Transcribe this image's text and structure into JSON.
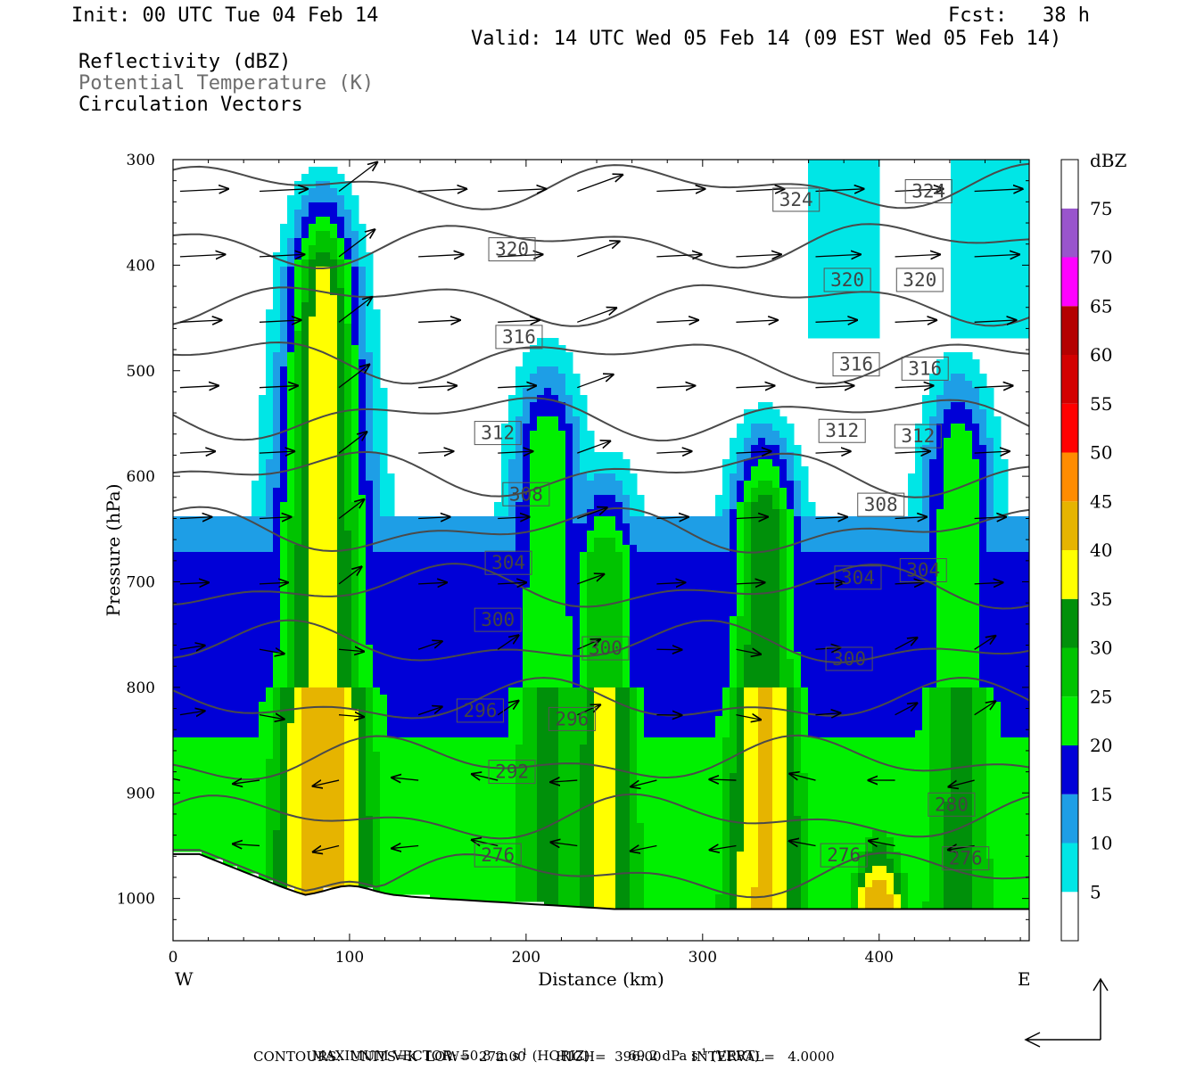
{
  "header": {
    "init": "Init: 00 UTC Tue 04 Feb 14",
    "fcst": "Fcst:   38 h",
    "valid": "Valid: 14 UTC Wed 05 Feb 14 (09 EST Wed 05 Feb 14)",
    "field1": "Reflectivity (dBZ)",
    "field2": "Potential Temperature (K)",
    "field3": "Circulation Vectors"
  },
  "footer": {
    "max_vector_label": "MAXIMUM VECTOR:",
    "max_vector_horiz": "50.8 m s",
    "horiz_tag": "(HORIZ)",
    "max_vector_vert": "69.2 dPa s",
    "vert_tag": "(VERT)",
    "exp": "-1",
    "contours": "CONTOURS:  UNITS=K  LOW=  272.00       HIGH=  396.00       INTERVAL=   4.0000"
  },
  "chart_data": {
    "type": "heatmap",
    "title": "",
    "xlabel": "Distance (km)",
    "ylabel": "Pressure (hPa)",
    "xlim": [
      0,
      485
    ],
    "ylim": [
      1040,
      300
    ],
    "x_ticks": [
      0,
      100,
      200,
      300,
      400
    ],
    "y_ticks": [
      300,
      400,
      500,
      600,
      700,
      800,
      900,
      1000
    ],
    "x_end_labels": {
      "left": "W",
      "right": "E"
    },
    "colorbar": {
      "unit": "dBZ",
      "levels": [
        5,
        10,
        15,
        20,
        25,
        30,
        35,
        40,
        45,
        50,
        55,
        60,
        65,
        70,
        75
      ],
      "colors": [
        "#ffffff",
        "#00e6e6",
        "#1e9ee6",
        "#0000d7",
        "#00f000",
        "#00c300",
        "#00900a",
        "#ffff00",
        "#e6b400",
        "#ff8c00",
        "#ff0000",
        "#d20000",
        "#b40000",
        "#ff00ff",
        "#9955cc"
      ]
    },
    "reflectivity_columns": [
      {
        "x": 85,
        "top_p": 315,
        "peak_dbz": 38
      },
      {
        "x": 212,
        "top_p": 470,
        "peak_dbz": 25
      },
      {
        "x": 245,
        "top_p": 580,
        "peak_dbz": 30
      },
      {
        "x": 335,
        "top_p": 540,
        "peak_dbz": 35
      },
      {
        "x": 400,
        "top_p": 900,
        "peak_dbz": 38
      },
      {
        "x": 445,
        "top_p": 480,
        "peak_dbz": 25
      }
    ],
    "theta_contour_labels": [
      {
        "value": "324",
        "x": 353,
        "p": 338
      },
      {
        "value": "324",
        "x": 428,
        "p": 330
      },
      {
        "value": "320",
        "x": 192,
        "p": 385
      },
      {
        "value": "320",
        "x": 382,
        "p": 414
      },
      {
        "value": "320",
        "x": 423,
        "p": 414
      },
      {
        "value": "316",
        "x": 196,
        "p": 468
      },
      {
        "value": "316",
        "x": 387,
        "p": 494
      },
      {
        "value": "316",
        "x": 426,
        "p": 498
      },
      {
        "value": "312",
        "x": 184,
        "p": 559
      },
      {
        "value": "312",
        "x": 379,
        "p": 557
      },
      {
        "value": "312",
        "x": 422,
        "p": 562
      },
      {
        "value": "308",
        "x": 200,
        "p": 617
      },
      {
        "value": "308",
        "x": 401,
        "p": 627
      },
      {
        "value": "304",
        "x": 190,
        "p": 682
      },
      {
        "value": "304",
        "x": 388,
        "p": 696
      },
      {
        "value": "304",
        "x": 425,
        "p": 689
      },
      {
        "value": "300",
        "x": 184,
        "p": 736
      },
      {
        "value": "300",
        "x": 245,
        "p": 763
      },
      {
        "value": "300",
        "x": 383,
        "p": 773
      },
      {
        "value": "296",
        "x": 174,
        "p": 822
      },
      {
        "value": "296",
        "x": 226,
        "p": 830
      },
      {
        "value": "292",
        "x": 192,
        "p": 880
      },
      {
        "value": "280",
        "x": 441,
        "p": 911
      },
      {
        "value": "276",
        "x": 184,
        "p": 959
      },
      {
        "value": "276",
        "x": 380,
        "p": 959
      },
      {
        "value": "276",
        "x": 449,
        "p": 962
      }
    ],
    "theta_range": {
      "low": 272.0,
      "high": 396.0,
      "interval": 4.0
    }
  }
}
